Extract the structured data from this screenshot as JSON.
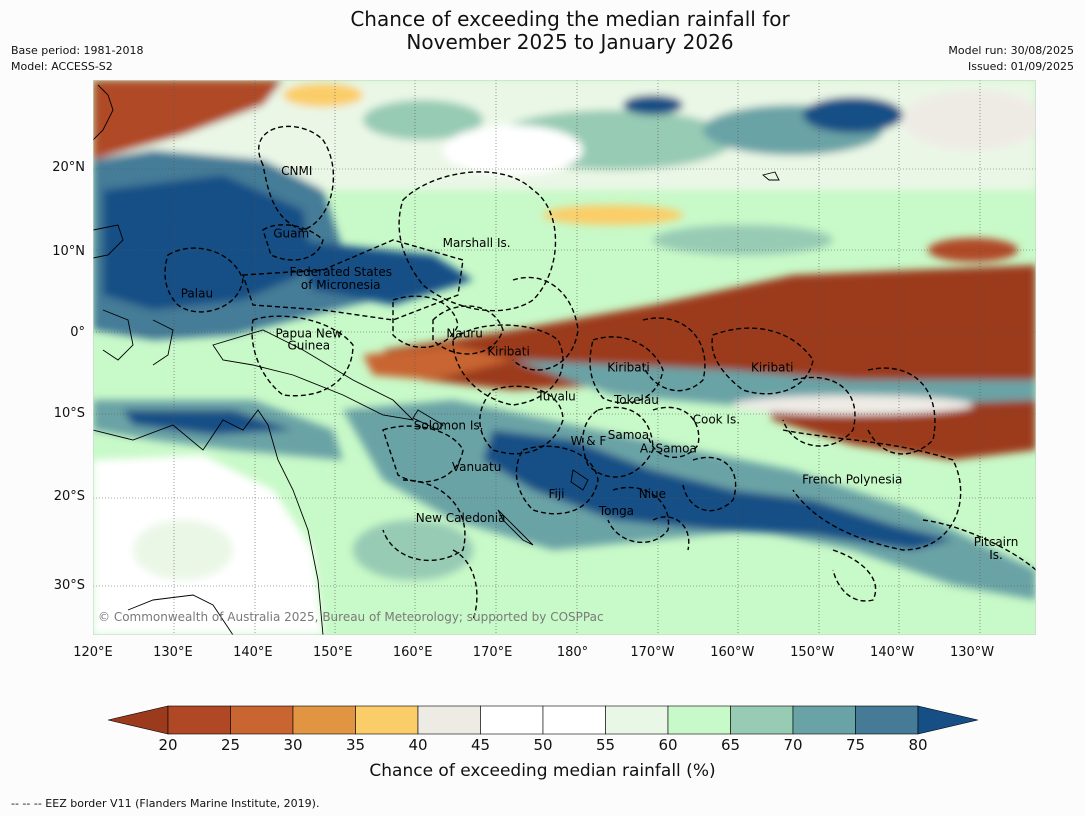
{
  "title_line1": "Chance of exceeding the median rainfall for",
  "title_line2": "November 2025 to January 2026",
  "meta": {
    "base_period": "Base period: 1981-2018",
    "model": "Model: ACCESS-S2",
    "model_run": "Model run: 30/08/2025",
    "issued": "Issued: 01/09/2025"
  },
  "map": {
    "lon_range": [
      120,
      238
    ],
    "lat_range": [
      -35,
      30
    ],
    "lat_labels": [
      "20°N",
      "10°N",
      "0°",
      "10°S",
      "20°S",
      "30°S"
    ],
    "lon_labels": [
      "120°E",
      "130°E",
      "140°E",
      "150°E",
      "160°E",
      "170°E",
      "180°",
      "170°W",
      "160°W",
      "150°W",
      "140°W",
      "130°W"
    ],
    "places": [
      {
        "name": "CNMI",
        "lon": 145.5,
        "lat": 19.8
      },
      {
        "name": "Guam",
        "lon": 144.8,
        "lat": 12.3
      },
      {
        "name": "Marshall Is.",
        "lon": 168,
        "lat": 11.2
      },
      {
        "name": "Federated States",
        "lon": 151,
        "lat": 7.6
      },
      {
        "name": "of Micronesia",
        "lon": 151,
        "lat": 6
      },
      {
        "name": "Palau",
        "lon": 133,
        "lat": 5
      },
      {
        "name": "Papua New",
        "lon": 147,
        "lat": 0
      },
      {
        "name": "Guinea",
        "lon": 147,
        "lat": -1.5
      },
      {
        "name": "Nauru",
        "lon": 166.5,
        "lat": 0
      },
      {
        "name": "Kiribati",
        "lon": 172,
        "lat": -2.2
      },
      {
        "name": "Kiribati",
        "lon": 187,
        "lat": -4.2
      },
      {
        "name": "Kiribati",
        "lon": 205,
        "lat": -4.2
      },
      {
        "name": "Tuvalu",
        "lon": 178,
        "lat": -7.8
      },
      {
        "name": "Tokelau",
        "lon": 188,
        "lat": -8.2
      },
      {
        "name": "Cook Is.",
        "lon": 198,
        "lat": -10.6
      },
      {
        "name": "Solomon Is.",
        "lon": 164.5,
        "lat": -11.3
      },
      {
        "name": "Samoa",
        "lon": 187,
        "lat": -12.5
      },
      {
        "name": "W & F",
        "lon": 182,
        "lat": -13.2
      },
      {
        "name": "A. Samoa",
        "lon": 192,
        "lat": -14.1
      },
      {
        "name": "Vanuatu",
        "lon": 168,
        "lat": -16.3
      },
      {
        "name": "Fiji",
        "lon": 178,
        "lat": -19.5
      },
      {
        "name": "Niue",
        "lon": 190,
        "lat": -19.5
      },
      {
        "name": "French Polynesia",
        "lon": 215,
        "lat": -17.8
      },
      {
        "name": "Tonga",
        "lon": 185.5,
        "lat": -21.5
      },
      {
        "name": "New Caledonia",
        "lon": 166,
        "lat": -22.3
      },
      {
        "name": "Pitcairn",
        "lon": 233,
        "lat": -25
      },
      {
        "name": "Is.",
        "lon": 233,
        "lat": -26.5
      }
    ]
  },
  "copyright": "© Commonwealth of Australia 2025, Bureau of Meteorology; supported by COSPPac",
  "colorbar": {
    "ticks": [
      "20",
      "25",
      "30",
      "35",
      "40",
      "45",
      "50",
      "55",
      "60",
      "65",
      "70",
      "75",
      "80"
    ],
    "colors": [
      "#9c3a1e",
      "#b04825",
      "#c86530",
      "#e19441",
      "#fbcd68",
      "#eeebe5",
      "#ffffff",
      "#ffffff",
      "#e9f7e6",
      "#c8f9c8",
      "#97cbb4",
      "#6aa3a6",
      "#457b97",
      "#154f86"
    ],
    "label": "Chance of exceeding median rainfall (%)"
  },
  "footnote": "--  --  -- EEZ border V11 (Flanders Marine Institute, 2019)."
}
